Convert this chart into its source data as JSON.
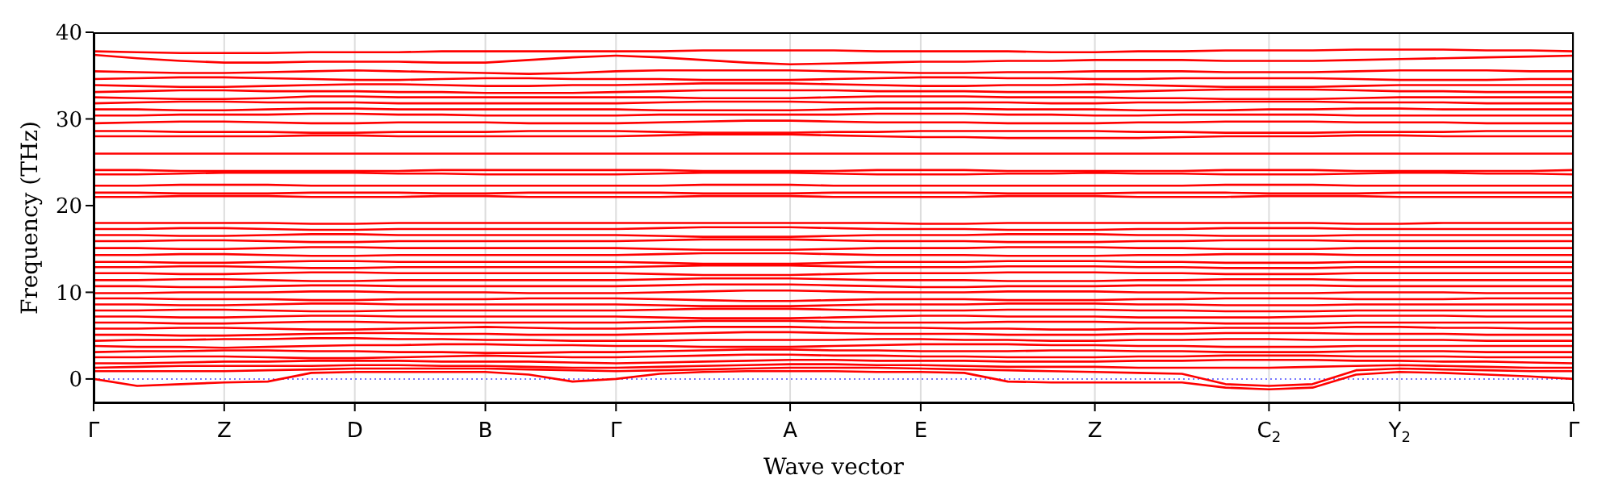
{
  "chart_data": {
    "type": "line",
    "xlabel": "Wave vector",
    "ylabel": "Frequency (THz)",
    "grid": "x",
    "ylim": [
      -2.8,
      40
    ],
    "yticks": [
      0,
      10,
      20,
      30,
      40
    ],
    "categories": [
      "Γ",
      null,
      null,
      "Z",
      null,
      null,
      "D",
      null,
      null,
      "B",
      null,
      null,
      "Γ",
      null,
      null,
      null,
      "A",
      null,
      null,
      "E",
      null,
      null,
      null,
      "Z",
      null,
      null,
      null,
      "C$_{2}$",
      null,
      null,
      "Y$_{2}$",
      null,
      null,
      null,
      "Γ"
    ],
    "ref_lines": [
      {
        "axis": "y",
        "value": 0,
        "color": "#7777ff",
        "line_style": "dotted"
      }
    ],
    "series": [
      {
        "color": "#ff0000",
        "values": [
          0,
          -0.8,
          -0.6,
          -0.4,
          -0.3,
          0.7,
          0.8,
          0.8,
          0.8,
          0.8,
          0.5,
          -0.3,
          0,
          0.6,
          0.8,
          0.9,
          0.9,
          0.9,
          0.8,
          0.8,
          0.7,
          -0.3,
          -0.4,
          -0.4,
          -0.4,
          -0.4,
          -1,
          -1.2,
          -1,
          0.5,
          0.8,
          0.7,
          0.5,
          0.3,
          0
        ]
      },
      {
        "color": "#ff0000",
        "values": [
          0.9,
          0.9,
          0.9,
          0.9,
          1,
          1.1,
          1.2,
          1.2,
          1.2,
          1.2,
          1.1,
          1,
          0.9,
          1,
          1.1,
          1.2,
          1.3,
          1.3,
          1.3,
          1.2,
          1.1,
          1,
          0.9,
          0.8,
          0.7,
          0.6,
          -0.6,
          -0.8,
          -0.6,
          1,
          1.2,
          1.1,
          1,
          0.9,
          0.9
        ]
      },
      {
        "color": "#ff0000",
        "values": [
          1.3,
          1.4,
          1.5,
          1.5,
          1.5,
          1.5,
          1.6,
          1.6,
          1.5,
          1.5,
          1.4,
          1.3,
          1.3,
          1.4,
          1.5,
          1.6,
          1.7,
          1.7,
          1.6,
          1.6,
          1.5,
          1.4,
          1.4,
          1.4,
          1.3,
          1.3,
          1.3,
          1.3,
          1.4,
          1.5,
          1.6,
          1.5,
          1.4,
          1.3,
          1.3
        ]
      },
      {
        "color": "#ff0000",
        "values": [
          1.8,
          1.8,
          1.9,
          2,
          2,
          2.1,
          2.1,
          2.1,
          2,
          2,
          2,
          1.9,
          1.8,
          1.9,
          2,
          2.1,
          2.2,
          2.2,
          2.1,
          2.1,
          2.1,
          2,
          2,
          2,
          2.1,
          2.1,
          2.2,
          2.2,
          2.2,
          2.1,
          2.1,
          2,
          2,
          1.9,
          1.8
        ]
      },
      {
        "color": "#ff0000",
        "values": [
          2.5,
          2.5,
          2.6,
          2.6,
          2.5,
          2.4,
          2.4,
          2.5,
          2.6,
          2.7,
          2.6,
          2.5,
          2.5,
          2.6,
          2.7,
          2.8,
          2.8,
          2.7,
          2.7,
          2.6,
          2.6,
          2.5,
          2.5,
          2.5,
          2.6,
          2.6,
          2.7,
          2.7,
          2.7,
          2.6,
          2.6,
          2.6,
          2.5,
          2.5,
          2.5
        ]
      },
      {
        "color": "#ff0000",
        "values": [
          3.1,
          3.2,
          3.2,
          3.3,
          3.3,
          3.2,
          3.2,
          3.1,
          3.1,
          3,
          3,
          3.1,
          3.1,
          3.2,
          3.3,
          3.4,
          3.4,
          3.3,
          3.3,
          3.2,
          3.2,
          3.2,
          3.3,
          3.3,
          3.2,
          3.2,
          3.1,
          3.1,
          3.1,
          3.2,
          3.2,
          3.2,
          3.1,
          3.1,
          3.1
        ]
      },
      {
        "color": "#ff0000",
        "values": [
          3.8,
          3.7,
          3.7,
          3.6,
          3.7,
          3.8,
          3.9,
          3.9,
          4,
          4,
          3.9,
          3.9,
          3.8,
          3.8,
          3.7,
          3.7,
          3.7,
          3.8,
          3.9,
          4,
          4,
          4,
          3.9,
          3.9,
          3.8,
          3.8,
          3.7,
          3.7,
          3.7,
          3.8,
          3.8,
          3.8,
          3.8,
          3.8,
          3.8
        ]
      },
      {
        "color": "#ff0000",
        "values": [
          4.4,
          4.5,
          4.5,
          4.6,
          4.6,
          4.7,
          4.7,
          4.6,
          4.6,
          4.5,
          4.5,
          4.4,
          4.4,
          4.4,
          4.5,
          4.5,
          4.5,
          4.5,
          4.6,
          4.6,
          4.5,
          4.5,
          4.4,
          4.4,
          4.5,
          4.5,
          4.6,
          4.6,
          4.5,
          4.5,
          4.5,
          4.5,
          4.4,
          4.4,
          4.4
        ]
      },
      {
        "color": "#ff0000",
        "values": [
          5.1,
          5.1,
          5,
          5,
          5.1,
          5.2,
          5.3,
          5.3,
          5.2,
          5.2,
          5.1,
          5.1,
          5.1,
          5.2,
          5.3,
          5.4,
          5.4,
          5.3,
          5.2,
          5.2,
          5.2,
          5.1,
          5.1,
          5.1,
          5.2,
          5.2,
          5.3,
          5.3,
          5.3,
          5.2,
          5.2,
          5.2,
          5.1,
          5.1,
          5.1
        ]
      },
      {
        "color": "#ff0000",
        "values": [
          5.8,
          5.8,
          5.9,
          5.9,
          5.8,
          5.7,
          5.7,
          5.8,
          5.9,
          6,
          5.9,
          5.8,
          5.8,
          5.9,
          6,
          6,
          6,
          5.9,
          5.9,
          5.9,
          5.8,
          5.8,
          5.7,
          5.7,
          5.8,
          5.8,
          5.9,
          5.9,
          5.9,
          6,
          6,
          5.9,
          5.9,
          5.8,
          5.8
        ]
      },
      {
        "color": "#ff0000",
        "values": [
          6.5,
          6.5,
          6.4,
          6.4,
          6.5,
          6.6,
          6.6,
          6.5,
          6.5,
          6.5,
          6.5,
          6.5,
          6.5,
          6.6,
          6.7,
          6.7,
          6.7,
          6.6,
          6.5,
          6.5,
          6.5,
          6.6,
          6.6,
          6.6,
          6.5,
          6.5,
          6.4,
          6.4,
          6.4,
          6.5,
          6.5,
          6.5,
          6.5,
          6.5,
          6.5
        ]
      },
      {
        "color": "#ff0000",
        "values": [
          7.2,
          7.2,
          7.1,
          7.1,
          7.2,
          7.3,
          7.3,
          7.2,
          7.2,
          7.2,
          7.2,
          7.2,
          7.2,
          7.1,
          7,
          7,
          7,
          7.1,
          7.2,
          7.3,
          7.3,
          7.2,
          7.2,
          7.2,
          7.1,
          7.1,
          7.1,
          7.1,
          7.2,
          7.3,
          7.3,
          7.3,
          7.2,
          7.2,
          7.2
        ]
      },
      {
        "color": "#ff0000",
        "values": [
          7.9,
          7.9,
          8,
          8,
          7.9,
          7.8,
          7.8,
          7.9,
          7.9,
          7.9,
          7.9,
          7.9,
          7.9,
          8,
          8.1,
          8.1,
          8.1,
          8,
          7.9,
          7.9,
          7.9,
          8,
          8,
          8,
          7.9,
          7.9,
          7.8,
          7.8,
          7.8,
          7.9,
          7.9,
          7.9,
          7.9,
          7.9,
          7.9
        ]
      },
      {
        "color": "#ff0000",
        "values": [
          8.6,
          8.6,
          8.5,
          8.5,
          8.6,
          8.7,
          8.7,
          8.6,
          8.6,
          8.6,
          8.6,
          8.6,
          8.6,
          8.5,
          8.4,
          8.4,
          8.4,
          8.5,
          8.6,
          8.6,
          8.6,
          8.7,
          8.7,
          8.7,
          8.6,
          8.6,
          8.5,
          8.5,
          8.5,
          8.6,
          8.6,
          8.6,
          8.6,
          8.6,
          8.6
        ]
      },
      {
        "color": "#ff0000",
        "values": [
          9.3,
          9.3,
          9.2,
          9.2,
          9.2,
          9.1,
          9.1,
          9.2,
          9.2,
          9.2,
          9.3,
          9.3,
          9.3,
          9.2,
          9.1,
          9,
          9,
          9.1,
          9.2,
          9.2,
          9.2,
          9.1,
          9.1,
          9.1,
          9.2,
          9.2,
          9.3,
          9.3,
          9.3,
          9.2,
          9.2,
          9.2,
          9.3,
          9.3,
          9.3
        ]
      },
      {
        "color": "#ff0000",
        "values": [
          9.9,
          9.9,
          10,
          10,
          10,
          10.1,
          10.1,
          10,
          10,
          10,
          9.9,
          9.9,
          9.9,
          10,
          10.1,
          10.2,
          10.2,
          10.1,
          10,
          10,
          10,
          10.1,
          10.1,
          10.1,
          10,
          10,
          9.9,
          9.9,
          9.9,
          10,
          10,
          10,
          9.9,
          9.9,
          9.9
        ]
      },
      {
        "color": "#ff0000",
        "values": [
          10.7,
          10.7,
          10.6,
          10.6,
          10.7,
          10.8,
          10.8,
          10.7,
          10.7,
          10.7,
          10.7,
          10.7,
          10.7,
          10.8,
          10.9,
          10.9,
          10.9,
          10.8,
          10.7,
          10.6,
          10.6,
          10.7,
          10.7,
          10.7,
          10.8,
          10.8,
          10.8,
          10.8,
          10.8,
          10.7,
          10.7,
          10.7,
          10.7,
          10.7,
          10.7
        ]
      },
      {
        "color": "#ff0000",
        "values": [
          11.4,
          11.4,
          11.5,
          11.5,
          11.4,
          11.3,
          11.3,
          11.4,
          11.4,
          11.4,
          11.4,
          11.4,
          11.4,
          11.5,
          11.6,
          11.6,
          11.6,
          11.5,
          11.4,
          11.4,
          11.4,
          11.3,
          11.3,
          11.3,
          11.4,
          11.4,
          11.5,
          11.5,
          11.5,
          11.4,
          11.4,
          11.4,
          11.4,
          11.4,
          11.4
        ]
      },
      {
        "color": "#ff0000",
        "values": [
          12.2,
          12.2,
          12.1,
          12.1,
          12.2,
          12.3,
          12.3,
          12.2,
          12.2,
          12.2,
          12.2,
          12.2,
          12.2,
          12.1,
          12,
          12,
          12,
          12.1,
          12.2,
          12.2,
          12.2,
          12.3,
          12.3,
          12.3,
          12.2,
          12.2,
          12.1,
          12.1,
          12.1,
          12.2,
          12.2,
          12.2,
          12.2,
          12.2,
          12.2
        ]
      },
      {
        "color": "#ff0000",
        "values": [
          12.9,
          12.9,
          13,
          13,
          12.9,
          12.8,
          12.8,
          12.9,
          12.9,
          12.9,
          12.9,
          12.9,
          12.9,
          13,
          13.1,
          13.1,
          13.1,
          13,
          12.9,
          12.9,
          12.9,
          13,
          13,
          13,
          12.9,
          12.9,
          12.8,
          12.8,
          12.8,
          12.9,
          12.9,
          12.9,
          12.9,
          12.9,
          12.9
        ]
      },
      {
        "color": "#ff0000",
        "values": [
          13.5,
          13.5,
          13.4,
          13.4,
          13.5,
          13.6,
          13.6,
          13.5,
          13.5,
          13.5,
          13.5,
          13.5,
          13.5,
          13.4,
          13.3,
          13.3,
          13.3,
          13.4,
          13.5,
          13.5,
          13.5,
          13.6,
          13.6,
          13.6,
          13.5,
          13.5,
          13.4,
          13.4,
          13.4,
          13.5,
          13.5,
          13.5,
          13.5,
          13.5,
          13.5
        ]
      },
      {
        "color": "#ff0000",
        "values": [
          14.3,
          14.3,
          14.4,
          14.4,
          14.3,
          14.2,
          14.2,
          14.3,
          14.3,
          14.3,
          14.3,
          14.3,
          14.3,
          14.4,
          14.5,
          14.5,
          14.5,
          14.4,
          14.3,
          14.3,
          14.3,
          14.2,
          14.2,
          14.2,
          14.3,
          14.3,
          14.4,
          14.4,
          14.4,
          14.3,
          14.3,
          14.3,
          14.3,
          14.3,
          14.3
        ]
      },
      {
        "color": "#ff0000",
        "values": [
          15.1,
          15.1,
          15,
          15,
          15.1,
          15.2,
          15.2,
          15.1,
          15.1,
          15.1,
          15.1,
          15.1,
          15.1,
          15,
          14.9,
          14.9,
          14.9,
          15,
          15.1,
          15.1,
          15.1,
          15.2,
          15.2,
          15.2,
          15.1,
          15.1,
          15,
          15,
          15,
          15.1,
          15.1,
          15.1,
          15.1,
          15.1,
          15.1
        ]
      },
      {
        "color": "#ff0000",
        "values": [
          15.9,
          15.9,
          16,
          16,
          15.9,
          15.8,
          15.8,
          15.9,
          15.9,
          15.9,
          15.9,
          15.9,
          15.9,
          16,
          16.1,
          16.1,
          16.1,
          16,
          15.9,
          15.9,
          15.9,
          15.8,
          15.8,
          15.8,
          15.9,
          15.9,
          16,
          16,
          16,
          15.9,
          15.9,
          15.9,
          15.9,
          15.9,
          15.9
        ]
      },
      {
        "color": "#ff0000",
        "values": [
          16.6,
          16.6,
          16.5,
          16.5,
          16.6,
          16.7,
          16.7,
          16.6,
          16.6,
          16.6,
          16.6,
          16.6,
          16.6,
          16.5,
          16.4,
          16.4,
          16.4,
          16.5,
          16.6,
          16.6,
          16.6,
          16.7,
          16.7,
          16.7,
          16.6,
          16.6,
          16.5,
          16.5,
          16.5,
          16.6,
          16.6,
          16.6,
          16.6,
          16.6,
          16.6
        ]
      },
      {
        "color": "#ff0000",
        "values": [
          17.3,
          17.3,
          17.4,
          17.4,
          17.3,
          17.2,
          17.2,
          17.3,
          17.3,
          17.3,
          17.3,
          17.3,
          17.3,
          17.4,
          17.5,
          17.5,
          17.5,
          17.4,
          17.3,
          17.3,
          17.3,
          17.2,
          17.2,
          17.2,
          17.3,
          17.3,
          17.4,
          17.4,
          17.4,
          17.3,
          17.3,
          17.3,
          17.3,
          17.3,
          17.3
        ]
      },
      {
        "color": "#ff0000",
        "values": [
          18,
          18,
          18,
          18,
          18,
          17.9,
          17.9,
          18,
          18,
          18,
          18,
          18,
          18,
          18,
          18,
          18,
          18,
          18,
          18,
          17.9,
          17.9,
          18,
          18,
          18,
          18,
          18,
          18,
          18,
          18,
          17.9,
          17.9,
          18,
          18,
          18,
          18
        ]
      },
      {
        "color": "#ff0000",
        "values": [
          21,
          21,
          21.1,
          21.1,
          21.1,
          21,
          21,
          21,
          21.1,
          21.1,
          21,
          21,
          21,
          21,
          21.1,
          21.1,
          21.1,
          21,
          21,
          21,
          21,
          21.1,
          21.1,
          21.1,
          21,
          21,
          21,
          21.1,
          21.1,
          21.1,
          21,
          21,
          21,
          21,
          21
        ]
      },
      {
        "color": "#ff0000",
        "values": [
          21.5,
          21.5,
          21.4,
          21.4,
          21.4,
          21.5,
          21.5,
          21.5,
          21.4,
          21.4,
          21.5,
          21.5,
          21.5,
          21.5,
          21.4,
          21.4,
          21.4,
          21.5,
          21.5,
          21.5,
          21.5,
          21.4,
          21.4,
          21.4,
          21.5,
          21.5,
          21.5,
          21.4,
          21.4,
          21.4,
          21.5,
          21.5,
          21.5,
          21.5,
          21.5
        ]
      },
      {
        "color": "#ff0000",
        "values": [
          22.3,
          22.3,
          22.4,
          22.4,
          22.4,
          22.3,
          22.3,
          22.3,
          22.3,
          22.3,
          22.3,
          22.3,
          22.3,
          22.3,
          22.4,
          22.4,
          22.4,
          22.3,
          22.3,
          22.3,
          22.3,
          22.3,
          22.3,
          22.3,
          22.3,
          22.3,
          22.4,
          22.4,
          22.4,
          22.3,
          22.3,
          22.3,
          22.3,
          22.3,
          22.3
        ]
      },
      {
        "color": "#ff0000",
        "values": [
          23.6,
          23.6,
          23.7,
          23.8,
          23.8,
          23.8,
          23.8,
          23.7,
          23.7,
          23.6,
          23.6,
          23.6,
          23.6,
          23.7,
          23.8,
          23.8,
          23.8,
          23.7,
          23.6,
          23.6,
          23.6,
          23.7,
          23.7,
          23.8,
          23.7,
          23.7,
          23.6,
          23.6,
          23.6,
          23.7,
          23.8,
          23.8,
          23.7,
          23.7,
          23.6
        ]
      },
      {
        "color": "#ff0000",
        "values": [
          24.1,
          24.1,
          24,
          24,
          24,
          24,
          24,
          24,
          24.1,
          24.1,
          24.1,
          24.1,
          24.1,
          24.1,
          24,
          24,
          24,
          24,
          24.1,
          24.1,
          24.1,
          24,
          24,
          24,
          24,
          24,
          24.1,
          24.1,
          24.1,
          24,
          24,
          24,
          24,
          24,
          24.1
        ]
      },
      {
        "color": "#ff0000",
        "values": [
          26,
          26,
          26,
          26,
          26,
          26,
          26,
          26,
          26,
          26,
          26,
          26,
          26,
          26,
          26,
          26,
          26,
          26,
          26,
          26,
          26,
          26,
          26,
          26,
          26,
          26,
          26,
          26,
          26,
          26,
          26,
          26,
          26,
          26,
          26
        ]
      },
      {
        "color": "#ff0000",
        "values": [
          28,
          28,
          28,
          28,
          28,
          28.1,
          28.1,
          28,
          28,
          28,
          28,
          28,
          28,
          28.1,
          28.2,
          28.2,
          28.2,
          28.1,
          28,
          27.9,
          27.9,
          27.8,
          27.8,
          27.8,
          27.8,
          27.9,
          28,
          28,
          28,
          28.1,
          28.1,
          28,
          28,
          28,
          28
        ]
      },
      {
        "color": "#ff0000",
        "values": [
          28.6,
          28.6,
          28.5,
          28.5,
          28.5,
          28.4,
          28.4,
          28.5,
          28.5,
          28.5,
          28.6,
          28.6,
          28.6,
          28.5,
          28.4,
          28.4,
          28.4,
          28.5,
          28.5,
          28.6,
          28.6,
          28.6,
          28.6,
          28.6,
          28.5,
          28.5,
          28.4,
          28.4,
          28.4,
          28.5,
          28.5,
          28.5,
          28.6,
          28.6,
          28.6
        ]
      },
      {
        "color": "#ff0000",
        "values": [
          29.5,
          29.6,
          29.7,
          29.7,
          29.6,
          29.5,
          29.5,
          29.6,
          29.6,
          29.6,
          29.5,
          29.5,
          29.5,
          29.6,
          29.7,
          29.8,
          29.8,
          29.7,
          29.6,
          29.6,
          29.6,
          29.5,
          29.5,
          29.5,
          29.6,
          29.6,
          29.7,
          29.7,
          29.7,
          29.6,
          29.6,
          29.6,
          29.5,
          29.5,
          29.5
        ]
      },
      {
        "color": "#ff0000",
        "values": [
          30.4,
          30.4,
          30.5,
          30.5,
          30.5,
          30.6,
          30.6,
          30.5,
          30.5,
          30.4,
          30.4,
          30.4,
          30.4,
          30.5,
          30.5,
          30.5,
          30.5,
          30.5,
          30.6,
          30.6,
          30.6,
          30.5,
          30.5,
          30.4,
          30.4,
          30.5,
          30.5,
          30.5,
          30.5,
          30.4,
          30.4,
          30.4,
          30.4,
          30.4,
          30.4
        ]
      },
      {
        "color": "#ff0000",
        "values": [
          31.1,
          31.1,
          31,
          31,
          31.1,
          31.2,
          31.2,
          31.1,
          31.1,
          31.1,
          31.1,
          31.1,
          31.1,
          31,
          31,
          31,
          31,
          31.1,
          31.2,
          31.2,
          31.2,
          31.1,
          31.1,
          31.1,
          31,
          31,
          31,
          31.1,
          31.1,
          31.2,
          31.2,
          31.1,
          31.1,
          31.1,
          31.1
        ]
      },
      {
        "color": "#ff0000",
        "values": [
          31.8,
          31.9,
          32,
          32,
          31.9,
          31.9,
          31.9,
          31.8,
          31.8,
          31.8,
          31.8,
          31.8,
          31.8,
          31.9,
          32,
          32,
          32,
          31.9,
          31.9,
          31.9,
          31.9,
          31.9,
          31.8,
          31.8,
          31.9,
          31.9,
          32,
          32,
          32,
          31.9,
          31.9,
          31.9,
          31.8,
          31.8,
          31.8
        ]
      },
      {
        "color": "#ff0000",
        "values": [
          32.5,
          32.4,
          32.3,
          32.3,
          32.4,
          32.6,
          32.6,
          32.5,
          32.5,
          32.5,
          32.5,
          32.5,
          32.5,
          32.5,
          32.4,
          32.4,
          32.4,
          32.5,
          32.6,
          32.6,
          32.6,
          32.5,
          32.5,
          32.5,
          32.4,
          32.4,
          32.3,
          32.3,
          32.3,
          32.4,
          32.5,
          32.5,
          32.5,
          32.5,
          32.5
        ]
      },
      {
        "color": "#ff0000",
        "values": [
          33.1,
          33.2,
          33.3,
          33.3,
          33.2,
          33.2,
          33.2,
          33.1,
          33.1,
          33,
          33,
          33,
          33.1,
          33.2,
          33.3,
          33.3,
          33.3,
          33.3,
          33.2,
          33.2,
          33.2,
          33.1,
          33.1,
          33.1,
          33.2,
          33.3,
          33.4,
          33.4,
          33.4,
          33.3,
          33.2,
          33.2,
          33.1,
          33.1,
          33.1
        ]
      },
      {
        "color": "#ff0000",
        "values": [
          33.9,
          33.8,
          33.7,
          33.7,
          33.8,
          33.9,
          34,
          34,
          33.9,
          33.8,
          33.8,
          33.9,
          33.9,
          34,
          34.1,
          34.1,
          34.1,
          34,
          33.9,
          33.8,
          33.8,
          33.9,
          33.9,
          34,
          33.9,
          33.8,
          33.7,
          33.7,
          33.7,
          33.8,
          33.9,
          33.9,
          33.9,
          33.9,
          33.9
        ]
      },
      {
        "color": "#ff0000",
        "values": [
          34.6,
          34.7,
          34.8,
          34.8,
          34.7,
          34.6,
          34.5,
          34.5,
          34.6,
          34.7,
          34.7,
          34.6,
          34.6,
          34.6,
          34.5,
          34.5,
          34.5,
          34.6,
          34.7,
          34.8,
          34.8,
          34.7,
          34.7,
          34.6,
          34.6,
          34.7,
          34.7,
          34.7,
          34.7,
          34.6,
          34.5,
          34.5,
          34.5,
          34.6,
          34.6
        ]
      },
      {
        "color": "#ff0000",
        "values": [
          35.5,
          35.4,
          35.3,
          35.3,
          35.4,
          35.5,
          35.6,
          35.5,
          35.4,
          35.3,
          35.2,
          35.3,
          35.5,
          35.6,
          35.6,
          35.6,
          35.6,
          35.5,
          35.4,
          35.3,
          35.3,
          35.4,
          35.4,
          35.5,
          35.5,
          35.5,
          35.4,
          35.4,
          35.4,
          35.5,
          35.6,
          35.6,
          35.6,
          35.5,
          35.5
        ]
      },
      {
        "color": "#ff0000",
        "values": [
          37.4,
          37,
          36.7,
          36.5,
          36.5,
          36.6,
          36.6,
          36.6,
          36.5,
          36.5,
          36.8,
          37.1,
          37.3,
          37.1,
          36.8,
          36.5,
          36.3,
          36.4,
          36.5,
          36.6,
          36.6,
          36.7,
          36.7,
          36.8,
          36.8,
          36.8,
          36.7,
          36.7,
          36.7,
          36.8,
          36.9,
          37,
          37.1,
          37.2,
          37.3
        ]
      },
      {
        "color": "#ff0000",
        "values": [
          37.8,
          37.7,
          37.6,
          37.6,
          37.6,
          37.7,
          37.7,
          37.7,
          37.8,
          37.8,
          37.8,
          37.8,
          37.8,
          37.8,
          37.9,
          37.9,
          37.9,
          37.9,
          37.8,
          37.8,
          37.8,
          37.8,
          37.7,
          37.7,
          37.8,
          37.8,
          37.9,
          37.9,
          37.9,
          38,
          38,
          38,
          37.9,
          37.9,
          37.8
        ]
      }
    ]
  }
}
